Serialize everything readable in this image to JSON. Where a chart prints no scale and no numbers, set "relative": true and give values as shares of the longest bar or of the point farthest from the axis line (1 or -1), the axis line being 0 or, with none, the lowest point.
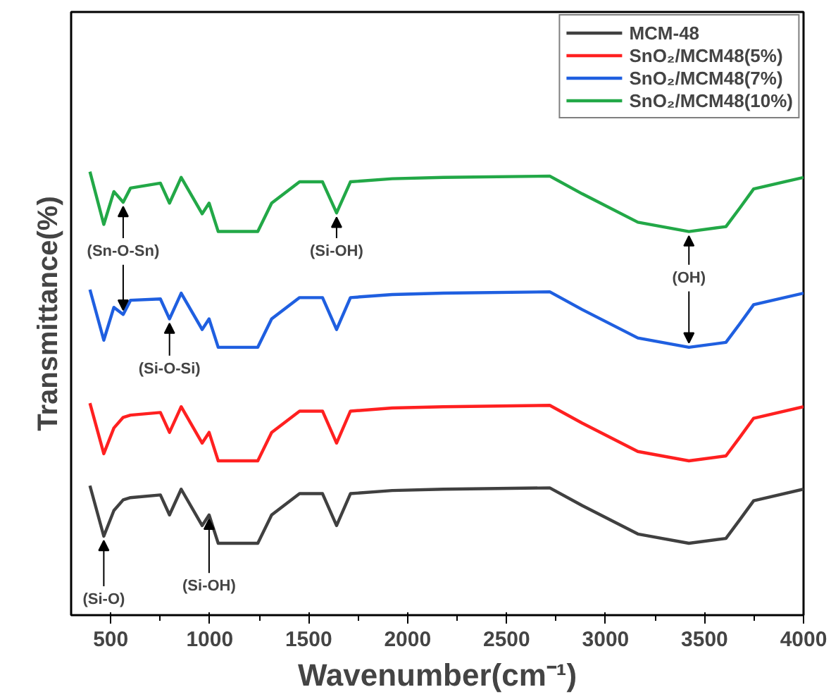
{
  "chart_data": {
    "type": "line",
    "relative": true,
    "xlabel": "Wavenumber(cm⁻¹)",
    "ylabel": "Transmittance(%)",
    "xlim": [
      300,
      4000
    ],
    "xticks": [
      500,
      1000,
      1500,
      2000,
      2500,
      3000,
      3500,
      4000
    ],
    "grid": false,
    "legend": "top right",
    "tick_labels": "x",
    "line_style": "solid",
    "marker": "none",
    "x": [
      395,
      465,
      516,
      563,
      600,
      751,
      797,
      856,
      962,
      997,
      1043,
      1243,
      1313,
      1454,
      1570,
      1641,
      1711,
      1922,
      2180,
      2718,
      2882,
      3163,
      3421,
      3608,
      3678,
      3748,
      4000
    ],
    "series": [
      {
        "name": "MCM-48",
        "color": "#404040",
        "values": [
          0.292,
          0.178,
          0.236,
          0.26,
          0.265,
          0.271,
          0.226,
          0.284,
          0.202,
          0.226,
          0.162,
          0.162,
          0.226,
          0.274,
          0.274,
          0.202,
          0.274,
          0.281,
          0.284,
          0.287,
          0.247,
          0.183,
          0.162,
          0.173,
          0.215,
          0.258,
          0.284
        ]
      },
      {
        "name": "SnO₂/MCM48(5%)",
        "color": "#ff2020",
        "values": [
          0.478,
          0.364,
          0.422,
          0.446,
          0.451,
          0.457,
          0.412,
          0.47,
          0.388,
          0.412,
          0.348,
          0.348,
          0.412,
          0.46,
          0.46,
          0.388,
          0.46,
          0.467,
          0.47,
          0.473,
          0.433,
          0.369,
          0.348,
          0.359,
          0.401,
          0.444,
          0.47
        ]
      },
      {
        "name": "SnO₂/MCM48(7%)",
        "color": "#1f5fe0",
        "values": [
          0.734,
          0.62,
          0.694,
          0.678,
          0.71,
          0.713,
          0.668,
          0.726,
          0.644,
          0.668,
          0.604,
          0.604,
          0.668,
          0.716,
          0.716,
          0.644,
          0.716,
          0.723,
          0.726,
          0.729,
          0.689,
          0.625,
          0.604,
          0.615,
          0.657,
          0.7,
          0.726
        ]
      },
      {
        "name": "SnO₂/MCM48(10%)",
        "color": "#22a847",
        "values": [
          1.0,
          0.881,
          0.955,
          0.931,
          0.963,
          0.974,
          0.929,
          0.987,
          0.905,
          0.929,
          0.865,
          0.865,
          0.929,
          0.977,
          0.977,
          0.907,
          0.977,
          0.984,
          0.987,
          0.99,
          0.95,
          0.886,
          0.865,
          0.876,
          0.918,
          0.961,
          0.987
        ]
      }
    ],
    "annotations": [
      {
        "text": "(Sn-O-Sn)",
        "x": 563,
        "y": 0.931
      },
      {
        "text": "(Si-O-Si)",
        "x": 797,
        "y": 0.668
      },
      {
        "text": "(Si-OH)",
        "x": 1641,
        "y": 0.907
      },
      {
        "text": "(OH)",
        "x": 3421,
        "y": 0.865
      },
      {
        "text": "(Si-O)",
        "x": 465,
        "y": 0.178
      },
      {
        "text": "(Si-OH)",
        "x": 997,
        "y": 0.226
      }
    ]
  }
}
